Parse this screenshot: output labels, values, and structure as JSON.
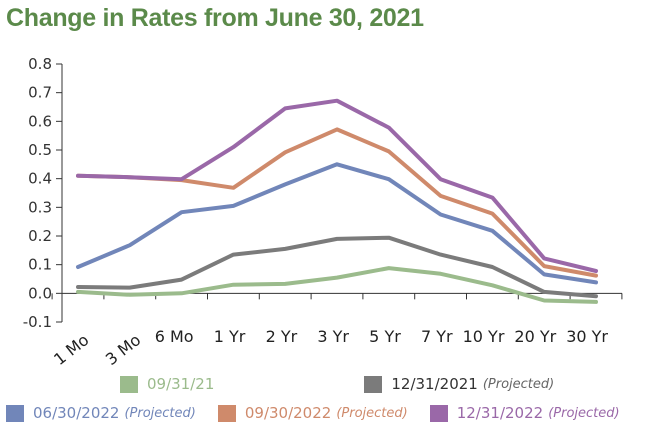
{
  "title": "Change in Rates from June 30, 2021",
  "chart_data": {
    "type": "line",
    "title": "Change in Rates from June 30, 2021",
    "categories": [
      "1 Mo",
      "3 Mo",
      "6 Mo",
      "1 Yr",
      "2 Yr",
      "3 Yr",
      "5 Yr",
      "7 Yr",
      "10 Yr",
      "20 Yr",
      "30 Yr"
    ],
    "ylim": [
      -0.1,
      0.8
    ],
    "yticks": [
      "-0.1",
      "0.0",
      "0.1",
      "0.2",
      "0.3",
      "0.4",
      "0.5",
      "0.6",
      "0.7",
      "0.8"
    ],
    "grid": false,
    "legend_position": "bottom",
    "series": [
      {
        "name": "09/31/21",
        "note": "",
        "color": "#9bbb8c",
        "values": [
          0.005,
          -0.005,
          0.0,
          0.03,
          0.033,
          0.055,
          0.088,
          0.068,
          0.028,
          -0.025,
          -0.03
        ]
      },
      {
        "name": "12/31/2021",
        "note": "(Projected)",
        "color": "#7b7b7b",
        "values": [
          0.022,
          0.02,
          0.048,
          0.135,
          0.155,
          0.19,
          0.194,
          0.135,
          0.092,
          0.005,
          -0.01
        ]
      },
      {
        "name": "06/30/2022",
        "note": "(Projected)",
        "color": "#7186b9",
        "values": [
          0.092,
          0.168,
          0.283,
          0.305,
          0.38,
          0.45,
          0.398,
          0.275,
          0.218,
          0.066,
          0.038
        ]
      },
      {
        "name": "09/30/2022",
        "note": "(Projected)",
        "color": "#cf8a6b",
        "values": [
          0.41,
          0.405,
          0.395,
          0.368,
          0.492,
          0.572,
          0.495,
          0.34,
          0.278,
          0.095,
          0.062
        ]
      },
      {
        "name": "12/31/2022",
        "note": "(Projected)",
        "color": "#9a68a8",
        "values": [
          0.41,
          0.405,
          0.398,
          0.51,
          0.645,
          0.672,
          0.578,
          0.398,
          0.334,
          0.122,
          0.078
        ]
      }
    ]
  }
}
